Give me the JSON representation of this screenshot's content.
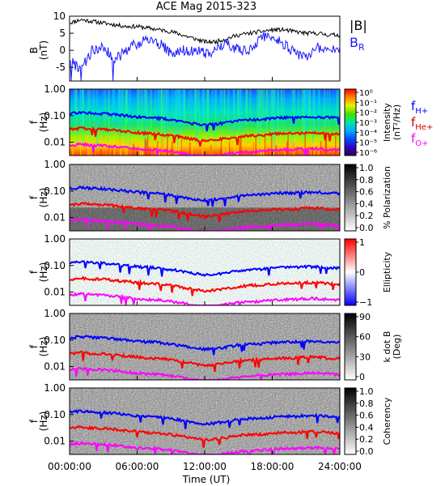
{
  "title": "ACE Mag 2015-323",
  "time_axis": {
    "label": "Time (UT)",
    "ticks": [
      "00:00:00",
      "06:00:00",
      "12:00:00",
      "18:00:00",
      "24:00:00"
    ],
    "range_hours": [
      0,
      24
    ]
  },
  "panel_b": {
    "ylabel_main": "B",
    "ylabel_unit": "(nT)",
    "yticks": [
      "10",
      "5",
      "0",
      "-5"
    ],
    "legend": [
      {
        "label": "|B|",
        "color": "#000000"
      },
      {
        "label": "B",
        "sub": "R",
        "color": "#1a1aff"
      }
    ]
  },
  "spectra": {
    "ylabel_main": "f",
    "ylabel_unit": "(Hz)",
    "yticks": [
      "1.00",
      "0.10",
      "0.01"
    ],
    "yrange_log10": [
      -2.5,
      0
    ],
    "cyclotron_lines": [
      {
        "name": "H+",
        "color": "#0000ff"
      },
      {
        "name": "He+",
        "color": "#ff0000"
      },
      {
        "name": "O+",
        "color": "#ff00ff"
      }
    ]
  },
  "panels": [
    {
      "key": "intensity",
      "colorbar": "rainbow",
      "cb_label": [
        "Intensity",
        "(nT²/Hz)"
      ],
      "cb_ticks": [
        "10⁰",
        "10⁻¹",
        "10⁻²",
        "10⁻³",
        "10⁻⁴",
        "10⁻⁵",
        "10⁻⁶"
      ],
      "legend": [
        {
          "label": "f",
          "sub": "H+",
          "color": "#0000ff"
        },
        {
          "label": "f",
          "sub": "He+",
          "color": "#cc0000"
        },
        {
          "label": "f",
          "sub": "O+",
          "color": "#ff00ff"
        }
      ]
    },
    {
      "key": "polarization",
      "colorbar": "gray",
      "cb_label": [
        "% Polarization"
      ],
      "cb_ticks": [
        "1.0",
        "0.8",
        "0.6",
        "0.4",
        "0.2",
        "0.0"
      ]
    },
    {
      "key": "ellipticity",
      "colorbar": "bwr",
      "cb_label": [
        "Ellipticity"
      ],
      "cb_ticks": [
        "1",
        "0",
        "−1"
      ]
    },
    {
      "key": "kdotb",
      "colorbar": "gray",
      "cb_label": [
        "k dot B",
        "(Deg)"
      ],
      "cb_ticks": [
        "90",
        "60",
        "30",
        "0"
      ]
    },
    {
      "key": "coherency",
      "colorbar": "gray",
      "cb_label": [
        "Coherency"
      ],
      "cb_ticks": [
        "1.0",
        "0.8",
        "0.6",
        "0.4",
        "0.2",
        "0.0"
      ]
    }
  ],
  "chart_data": [
    {
      "type": "line",
      "title": "ACE Mag 2015-323",
      "xlabel": "Time (UT)",
      "ylabel": "B (nT)",
      "xlim": [
        0,
        24
      ],
      "ylim": [
        -9,
        10
      ],
      "x": [
        0,
        1,
        2,
        3,
        4,
        5,
        6,
        7,
        8,
        9,
        10,
        11,
        12,
        13,
        14,
        15,
        16,
        17,
        18,
        19,
        20,
        21,
        22,
        23,
        24
      ],
      "series": [
        {
          "name": "|B|",
          "color": "#000000",
          "values": [
            8,
            9,
            8.5,
            8,
            7.5,
            7,
            7,
            6.5,
            6,
            5.5,
            4.5,
            3.5,
            2.5,
            2.5,
            3.5,
            4.5,
            5,
            5.5,
            6,
            6,
            5.5,
            5,
            5,
            4.5,
            4.5
          ]
        },
        {
          "name": "BR",
          "color": "#1a1aff",
          "values": [
            -3,
            -6,
            0,
            1,
            -3,
            0,
            2,
            3,
            2,
            -1,
            0,
            0,
            -1,
            0,
            2,
            0,
            0,
            4,
            4,
            2,
            -1,
            -2,
            1,
            0,
            0
          ]
        }
      ]
    },
    {
      "type": "line",
      "ylabel": "f (Hz)",
      "yscale": "log",
      "ylim": [
        0.00316,
        1
      ],
      "x": [
        0,
        1,
        2,
        3,
        4,
        5,
        6,
        7,
        8,
        9,
        10,
        11,
        12,
        13,
        14,
        15,
        16,
        17,
        18,
        19,
        20,
        21,
        22,
        23,
        24
      ],
      "series": [
        {
          "name": "fH+",
          "color": "#0000ff",
          "values": [
            0.12,
            0.135,
            0.125,
            0.12,
            0.11,
            0.1,
            0.09,
            0.085,
            0.08,
            0.07,
            0.06,
            0.05,
            0.045,
            0.048,
            0.055,
            0.065,
            0.07,
            0.072,
            0.08,
            0.085,
            0.085,
            0.09,
            0.09,
            0.085,
            0.08
          ]
        },
        {
          "name": "fHe+",
          "color": "#ff0000",
          "values": [
            0.03,
            0.034,
            0.031,
            0.03,
            0.028,
            0.025,
            0.023,
            0.021,
            0.02,
            0.018,
            0.015,
            0.013,
            0.011,
            0.012,
            0.014,
            0.016,
            0.018,
            0.018,
            0.02,
            0.021,
            0.021,
            0.023,
            0.023,
            0.021,
            0.02
          ]
        },
        {
          "name": "fO+",
          "color": "#ff00ff",
          "values": [
            0.0075,
            0.0085,
            0.0078,
            0.0075,
            0.007,
            0.0062,
            0.0057,
            0.0053,
            0.005,
            0.0045,
            0.0038,
            0.0032,
            0.0028,
            0.003,
            0.0035,
            0.004,
            0.0044,
            0.0045,
            0.005,
            0.0053,
            0.0053,
            0.0057,
            0.0057,
            0.0053,
            0.005
          ]
        }
      ]
    }
  ]
}
